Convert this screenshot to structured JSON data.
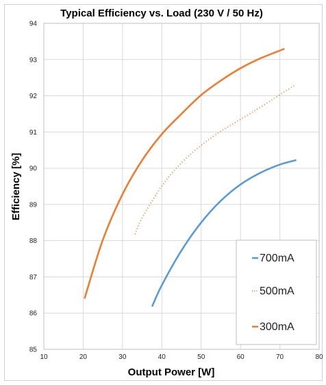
{
  "chart_data": {
    "type": "line",
    "title": "Typical Efficiency vs. Load (230 V / 50 Hz)",
    "xlabel": "Output Power [W]",
    "ylabel": "Efficiency [%]",
    "xlim": [
      10,
      80
    ],
    "ylim": [
      85,
      94
    ],
    "x_ticks": [
      "10",
      "20",
      "30",
      "40",
      "50",
      "60",
      "70",
      "80"
    ],
    "y_ticks": [
      "85",
      "86",
      "87",
      "88",
      "89",
      "90",
      "91",
      "92",
      "93",
      "94"
    ],
    "grid": true,
    "legend_position": "bottom-right",
    "series": [
      {
        "name": "700mA",
        "color": "#5b9bd5",
        "style": "solid",
        "x": [
          37.6,
          40,
          45,
          50,
          55,
          60,
          65,
          70,
          74
        ],
        "y": [
          86.2,
          86.77,
          87.73,
          88.5,
          89.1,
          89.55,
          89.87,
          90.1,
          90.22
        ]
      },
      {
        "name": "500mA",
        "color": "#ed7d31",
        "style": "dotted",
        "x": [
          33.2,
          35,
          40,
          45,
          50,
          55,
          60,
          65,
          70,
          74
        ],
        "y": [
          88.18,
          88.63,
          89.51,
          90.15,
          90.63,
          91.02,
          91.35,
          91.68,
          92.03,
          92.3
        ]
      },
      {
        "name": "300mA",
        "color": "#ed7d31",
        "style": "solid",
        "x": [
          20.4,
          25,
          30,
          35,
          40,
          45,
          50,
          55,
          60,
          65,
          71
        ],
        "y": [
          86.42,
          88.02,
          89.28,
          90.22,
          90.94,
          91.5,
          92.02,
          92.42,
          92.76,
          93.03,
          93.29
        ]
      }
    ]
  }
}
